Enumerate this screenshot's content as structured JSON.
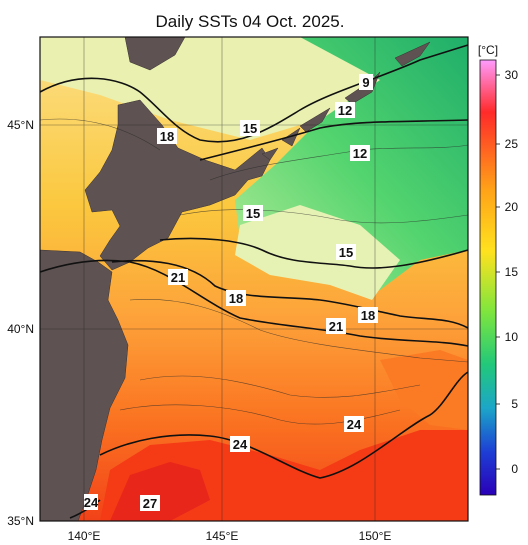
{
  "title": "Daily SSTs 04 Oct. 2025.",
  "colorbar": {
    "unit": "[°C]",
    "ticks": [
      "30",
      "25",
      "20",
      "15",
      "10",
      "5",
      "0"
    ],
    "stops": [
      "#ff9cff",
      "#ff2a2a",
      "#ffa318",
      "#ffe21f",
      "#7de53e",
      "#22c87a",
      "#1ca6c8",
      "#1d3fd4",
      "#2a00b8"
    ]
  },
  "axes": {
    "lat_labels": [
      "45°N",
      "40°N",
      "35°N"
    ],
    "lon_labels": [
      "140°E",
      "145°E",
      "150°E"
    ]
  },
  "isotherms": {
    "labels": [
      "9",
      "12",
      "12",
      "18",
      "15",
      "15",
      "15",
      "21",
      "18",
      "21",
      "18",
      "24",
      "24",
      "27",
      "24"
    ]
  },
  "colors": {
    "land": "#5e5252",
    "warm": "#ff4a18",
    "cool": "#4fd46e"
  }
}
